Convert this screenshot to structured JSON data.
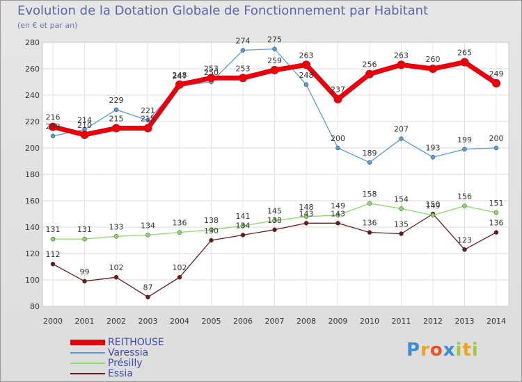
{
  "title": "Evolution de la Dotation Globale de Fonctionnement par Habitant",
  "subtitle": "(en € et par an)",
  "logo": {
    "letters": [
      {
        "ch": "P",
        "color": "#3a8ed6"
      },
      {
        "ch": "r",
        "color": "#f0a21c"
      },
      {
        "ch": "o",
        "color": "#e8541e"
      },
      {
        "ch": "x",
        "color": "#3a8ed6"
      },
      {
        "ch": "i",
        "color": "#9fc73b"
      },
      {
        "ch": "t",
        "color": "#f0a21c"
      },
      {
        "ch": "i",
        "color": "#9fc73b"
      }
    ]
  },
  "chart_data": {
    "type": "line",
    "x": [
      "2000",
      "2001",
      "2002",
      "2003",
      "2004",
      "2005",
      "2006",
      "2007",
      "2008",
      "2009",
      "2010",
      "2011",
      "2012",
      "2013",
      "2014"
    ],
    "ylim": [
      80,
      280
    ],
    "yticks": [
      80,
      100,
      120,
      140,
      160,
      180,
      200,
      220,
      240,
      260,
      280
    ],
    "grid": true,
    "legend_position": "bottom-left",
    "series": [
      {
        "name": "Essia",
        "color": "#6b1a1a",
        "values": [
          112,
          99,
          102,
          87,
          102,
          130,
          134,
          138,
          143,
          143,
          136,
          135,
          150,
          123,
          136
        ]
      },
      {
        "name": "Présilly",
        "color": "#8ed86a",
        "values": [
          131,
          131,
          133,
          134,
          136,
          138,
          141,
          145,
          148,
          149,
          158,
          154,
          149,
          156,
          151
        ]
      },
      {
        "name": "Varessia",
        "color": "#5a9bd5",
        "values": [
          209,
          214,
          229,
          221,
          247,
          250,
          274,
          275,
          248,
          200,
          189,
          207,
          193,
          199,
          200
        ]
      },
      {
        "name": "REITHOUSE",
        "color": "#e8000b",
        "values": [
          216,
          210,
          215,
          215,
          248,
          253,
          253,
          259,
          263,
          237,
          256,
          263,
          260,
          265,
          249
        ]
      }
    ],
    "legend_order": [
      "REITHOUSE",
      "Varessia",
      "Présilly",
      "Essia"
    ]
  }
}
